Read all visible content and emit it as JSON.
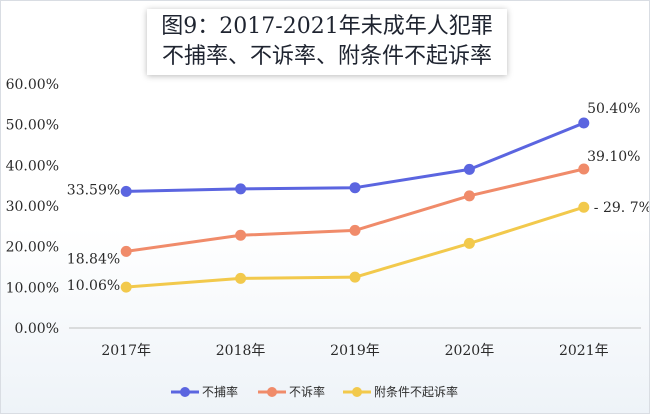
{
  "chart_data": {
    "type": "line",
    "title_line1": "图9：2017-2021年未成年人犯罪",
    "title_line2": "不捕率、不诉率、附条件不起诉率",
    "categories": [
      "2017年",
      "2018年",
      "2019年",
      "2020年",
      "2021年"
    ],
    "ylim": [
      0,
      60
    ],
    "yticks": [
      "0.00%",
      "10.00%",
      "20.00%",
      "30.00%",
      "40.00%",
      "50.00%",
      "60.00%"
    ],
    "grid": false,
    "legend_position": "bottom",
    "series": [
      {
        "name": "不捕率",
        "color": "#5b65e0",
        "values": [
          33.59,
          34.2,
          34.5,
          39.0,
          50.4
        ],
        "labels": [
          {
            "index": 0,
            "text": "33.59%"
          },
          {
            "index": 4,
            "text": "50.40%"
          }
        ]
      },
      {
        "name": "不诉率",
        "color": "#f08b6a",
        "values": [
          18.84,
          22.8,
          24.0,
          32.5,
          39.1
        ],
        "labels": [
          {
            "index": 0,
            "text": "18.84%"
          },
          {
            "index": 4,
            "text": "39.10%"
          }
        ]
      },
      {
        "name": "附条件不起诉率",
        "color": "#f2c94c",
        "values": [
          10.06,
          12.2,
          12.5,
          20.8,
          29.7
        ],
        "labels": [
          {
            "index": 0,
            "text": "10.06%"
          },
          {
            "index": 4,
            "text": "29. 7%"
          }
        ]
      }
    ]
  }
}
